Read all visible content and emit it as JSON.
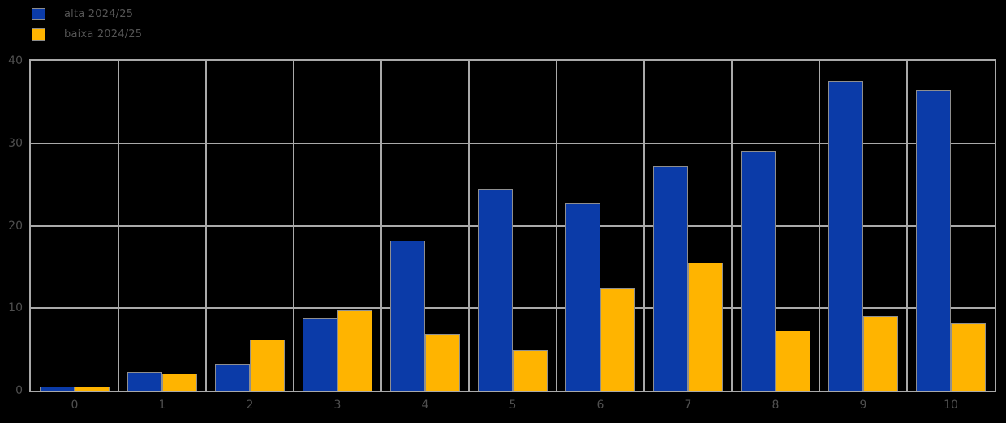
{
  "background_color": "#000000",
  "grid_color": "#a9a9a9",
  "bar_border_color": "#8f8f8f",
  "tick_label_color": "#4f4f4f",
  "legend": {
    "items": [
      {
        "label": "alta 2024/25",
        "color": "#0b3ba8"
      },
      {
        "label": "baixa 2024/25",
        "color": "#ffb400"
      }
    ]
  },
  "chart_data": {
    "type": "bar",
    "title": "",
    "xlabel": "",
    "ylabel": "",
    "categories": [
      "0",
      "1",
      "2",
      "3",
      "4",
      "5",
      "6",
      "7",
      "8",
      "9",
      "10"
    ],
    "series": [
      {
        "name": "alta 2024/25",
        "color": "#0b3ba8",
        "values": [
          0.5,
          2.3,
          3.2,
          8.7,
          18.2,
          24.5,
          22.7,
          27.2,
          29.1,
          37.5,
          36.5
        ]
      },
      {
        "name": "baixa 2024/25",
        "color": "#ffb400",
        "values": [
          0.5,
          2.1,
          6.2,
          9.7,
          6.9,
          4.9,
          12.4,
          15.5,
          7.3,
          9.0,
          8.2
        ]
      }
    ],
    "ylim": [
      0,
      40
    ],
    "yticks": [
      0,
      10,
      20,
      30,
      40
    ],
    "grid": true,
    "group_width_fraction": 0.8,
    "legend_position": "top-left"
  }
}
